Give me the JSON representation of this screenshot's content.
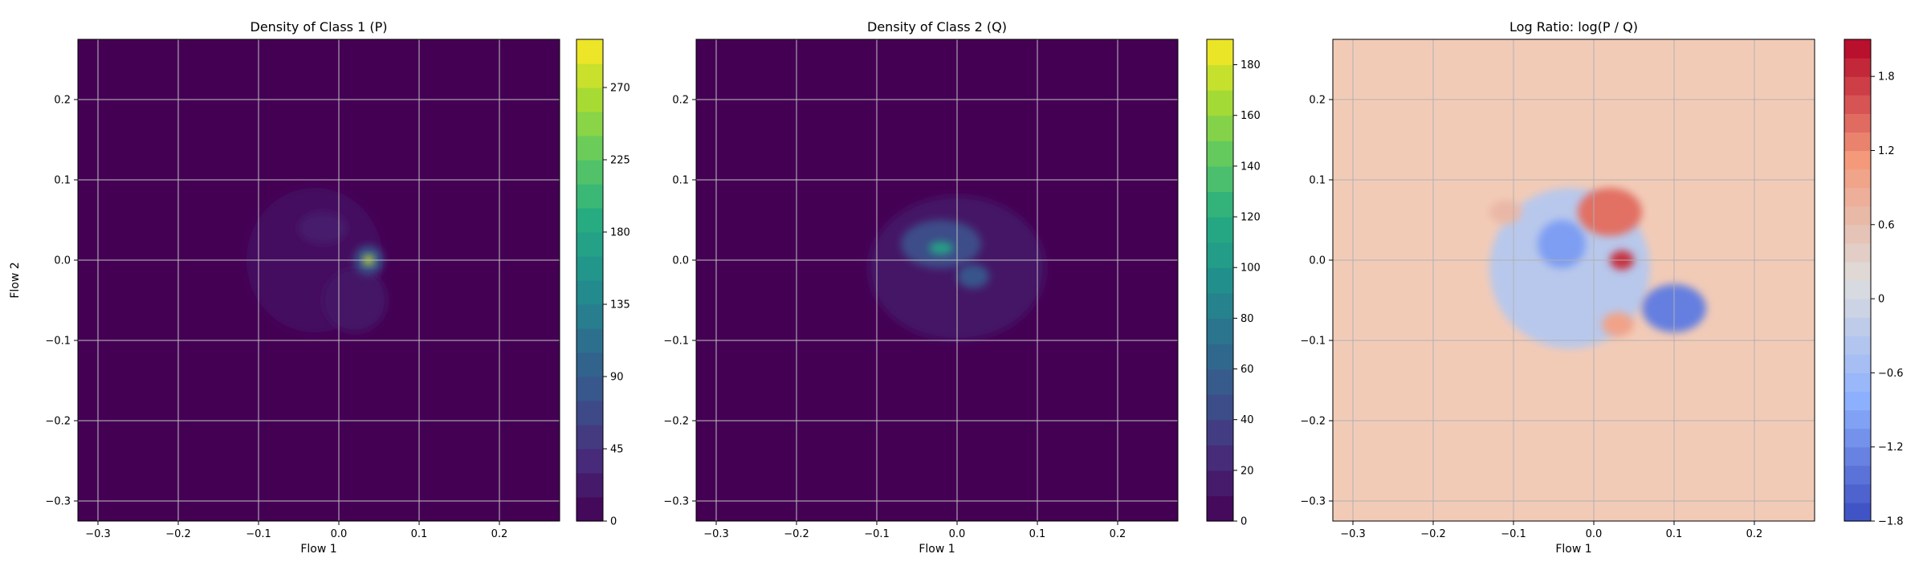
{
  "chart_data": [
    {
      "type": "heatmap",
      "title": "Density of Class 1 (P)",
      "xlabel": "Flow 1",
      "ylabel": "Flow 2",
      "xlim": [
        -0.325,
        0.275
      ],
      "ylim": [
        -0.325,
        0.275
      ],
      "xticks": [
        -0.3,
        -0.2,
        -0.1,
        0.0,
        0.1,
        0.2
      ],
      "yticks": [
        -0.3,
        -0.2,
        -0.1,
        0.0,
        0.1,
        0.2
      ],
      "grid": true,
      "colormap": "viridis",
      "background_color": "#440154",
      "colorbar": {
        "min": 0,
        "max": 300,
        "levels": 20,
        "ticks": [
          0,
          45,
          90,
          135,
          180,
          225,
          270
        ]
      },
      "density_blobs": [
        {
          "x": -0.03,
          "y": 0.0,
          "rx": 0.085,
          "ry": 0.09,
          "level": 12
        },
        {
          "x": -0.02,
          "y": 0.04,
          "rx": 0.03,
          "ry": 0.02,
          "level": 25
        },
        {
          "x": 0.02,
          "y": -0.05,
          "rx": 0.04,
          "ry": 0.04,
          "level": 18
        },
        {
          "x": 0.037,
          "y": 0.0,
          "rx": 0.018,
          "ry": 0.018,
          "level": 80
        },
        {
          "x": 0.037,
          "y": 0.0,
          "rx": 0.006,
          "ry": 0.006,
          "level": 280
        }
      ]
    },
    {
      "type": "heatmap",
      "title": "Density of Class 2 (Q)",
      "xlabel": "Flow 1",
      "ylabel": "",
      "xlim": [
        -0.325,
        0.275
      ],
      "ylim": [
        -0.325,
        0.275
      ],
      "xticks": [
        -0.3,
        -0.2,
        -0.1,
        0.0,
        0.1,
        0.2
      ],
      "yticks": [
        -0.3,
        -0.2,
        -0.1,
        0.0,
        0.1,
        0.2
      ],
      "grid": true,
      "colormap": "viridis",
      "background_color": "#440154",
      "colorbar": {
        "min": 0,
        "max": 190,
        "levels": 19,
        "ticks": [
          0,
          20,
          40,
          60,
          80,
          100,
          120,
          140,
          160,
          180
        ]
      },
      "density_blobs": [
        {
          "x": 0.0,
          "y": -0.01,
          "rx": 0.11,
          "ry": 0.09,
          "level": 12
        },
        {
          "x": -0.02,
          "y": 0.02,
          "rx": 0.05,
          "ry": 0.03,
          "level": 45
        },
        {
          "x": -0.02,
          "y": 0.015,
          "rx": 0.015,
          "ry": 0.008,
          "level": 110
        },
        {
          "x": 0.02,
          "y": -0.02,
          "rx": 0.02,
          "ry": 0.015,
          "level": 50
        }
      ]
    },
    {
      "type": "heatmap",
      "title": "Log Ratio: log(P / Q)",
      "xlabel": "Flow 1",
      "ylabel": "",
      "xlim": [
        -0.325,
        0.275
      ],
      "ylim": [
        -0.325,
        0.275
      ],
      "xticks": [
        -0.3,
        -0.2,
        -0.1,
        0.0,
        0.1,
        0.2
      ],
      "yticks": [
        -0.3,
        -0.2,
        -0.1,
        0.0,
        0.1,
        0.2
      ],
      "grid": true,
      "colormap": "coolwarm",
      "background_color": "#f2cbb7",
      "colorbar": {
        "min": -1.8,
        "max": 2.1,
        "levels": 26,
        "ticks": [
          -1.8,
          -1.2,
          -0.6,
          0.0,
          0.6,
          1.2,
          1.8
        ]
      },
      "ratio_blobs": [
        {
          "x": -0.03,
          "y": -0.01,
          "rx": 0.1,
          "ry": 0.1,
          "value": -0.3
        },
        {
          "x": -0.04,
          "y": 0.02,
          "rx": 0.03,
          "ry": 0.03,
          "value": -1.0
        },
        {
          "x": 0.1,
          "y": -0.06,
          "rx": 0.04,
          "ry": 0.03,
          "value": -1.3
        },
        {
          "x": 0.02,
          "y": 0.06,
          "rx": 0.04,
          "ry": 0.03,
          "value": 1.4
        },
        {
          "x": 0.035,
          "y": 0.0,
          "rx": 0.015,
          "ry": 0.012,
          "value": 1.8
        },
        {
          "x": 0.03,
          "y": -0.08,
          "rx": 0.02,
          "ry": 0.015,
          "value": 1.0
        },
        {
          "x": -0.11,
          "y": 0.06,
          "rx": 0.02,
          "ry": 0.015,
          "value": 0.7
        }
      ]
    }
  ]
}
